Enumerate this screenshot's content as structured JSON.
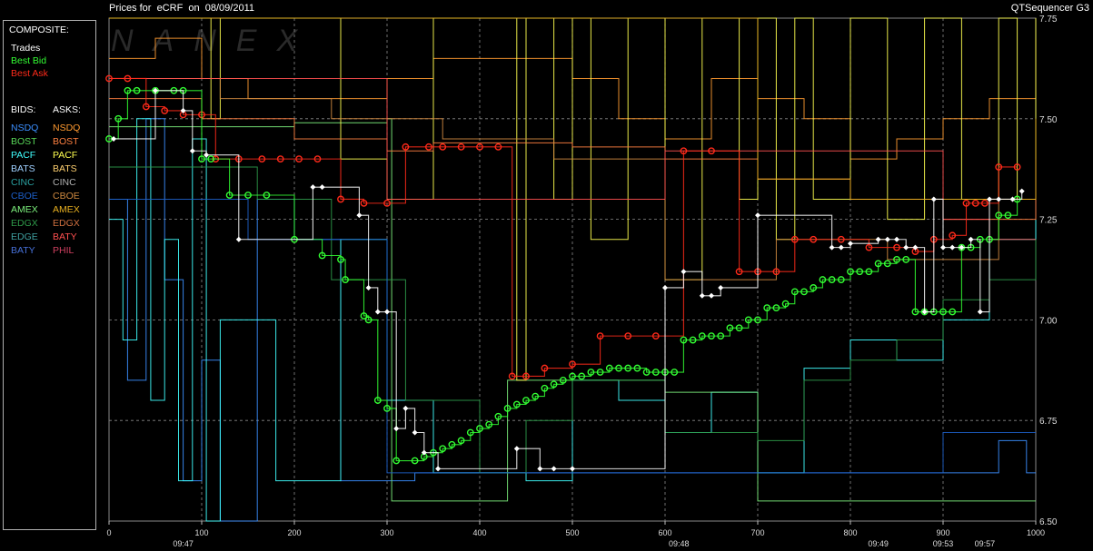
{
  "window": {
    "title": "Prices for  eCRF  on  08/09/2011",
    "app_name": "QTSequencer G3"
  },
  "legend": {
    "composite_header": "COMPOSITE:",
    "composite": [
      {
        "label": "Trades",
        "color": "#ffffff"
      },
      {
        "label": "Best Bid",
        "color": "#33ff33"
      },
      {
        "label": "Best Ask",
        "color": "#ff2a1a"
      }
    ],
    "bids_header": "BIDS:",
    "asks_header": "ASKS:",
    "bids": [
      {
        "label": "NSDQ",
        "color": "#3b8fff"
      },
      {
        "label": "BOST",
        "color": "#58d858"
      },
      {
        "label": "PACF",
        "color": "#40ffff"
      },
      {
        "label": "BATS",
        "color": "#9fd0ff"
      },
      {
        "label": "CINC",
        "color": "#2aa0a0"
      },
      {
        "label": "CBOE",
        "color": "#1d5fc8"
      },
      {
        "label": "AMEX",
        "color": "#7cf07c"
      },
      {
        "label": "EDGX",
        "color": "#2e9a4a"
      },
      {
        "label": "EDGE",
        "color": "#3fa0a0"
      },
      {
        "label": "BATY",
        "color": "#4670d8"
      }
    ],
    "asks": [
      {
        "label": "NSDQ",
        "color": "#ff9a30"
      },
      {
        "label": "BOST",
        "color": "#ff8040"
      },
      {
        "label": "PACF",
        "color": "#ffff50"
      },
      {
        "label": "BATS",
        "color": "#ffd070"
      },
      {
        "label": "CINC",
        "color": "#b0b0b0"
      },
      {
        "label": "CBOE",
        "color": "#d08a40"
      },
      {
        "label": "AMEX",
        "color": "#e8b020"
      },
      {
        "label": "EDGX",
        "color": "#d07040"
      },
      {
        "label": "BATY",
        "color": "#ff5050"
      },
      {
        "label": "PHIL",
        "color": "#d04060"
      }
    ]
  },
  "watermark": "NANEX",
  "chart_data": {
    "type": "line",
    "xlim": [
      0,
      1000
    ],
    "ylim": [
      6.5,
      7.75
    ],
    "x_ticks": [
      "0",
      "100",
      "200",
      "300",
      "400",
      "500",
      "600",
      "700",
      "800",
      "900",
      "1000"
    ],
    "y_ticks": [
      "6.50",
      "6.75",
      "7.00",
      "7.25",
      "7.50",
      "7.75"
    ],
    "time_labels": [
      {
        "x": 80,
        "label": "09:47"
      },
      {
        "x": 615,
        "label": "09:48"
      },
      {
        "x": 830,
        "label": "09:49"
      },
      {
        "x": 900,
        "label": "09:53"
      },
      {
        "x": 945,
        "label": "09:57"
      }
    ],
    "grid": true,
    "series": [
      {
        "name": "Best Ask",
        "color": "#ff2a1a",
        "marker": "circle",
        "x": [
          0,
          20,
          40,
          60,
          80,
          100,
          115,
          140,
          165,
          185,
          205,
          225,
          250,
          275,
          300,
          320,
          345,
          360,
          380,
          400,
          420,
          435,
          450,
          470,
          500,
          530,
          560,
          590,
          620,
          650,
          680,
          700,
          720,
          740,
          760,
          790,
          820,
          850,
          870,
          890,
          910,
          925,
          935,
          945,
          960,
          980
        ],
        "y": [
          7.6,
          7.6,
          7.53,
          7.52,
          7.51,
          7.51,
          7.4,
          7.4,
          7.4,
          7.4,
          7.4,
          7.4,
          7.3,
          7.29,
          7.29,
          7.43,
          7.43,
          7.43,
          7.43,
          7.43,
          7.43,
          6.86,
          6.86,
          6.88,
          6.89,
          6.96,
          6.96,
          6.96,
          7.42,
          7.42,
          7.12,
          7.12,
          7.12,
          7.2,
          7.2,
          7.2,
          7.18,
          7.18,
          7.17,
          7.2,
          7.21,
          7.29,
          7.29,
          7.29,
          7.38,
          7.38
        ]
      },
      {
        "name": "Best Bid",
        "color": "#33ff33",
        "marker": "circle",
        "x": [
          0,
          10,
          20,
          30,
          50,
          70,
          80,
          100,
          110,
          130,
          150,
          170,
          200,
          230,
          250,
          255,
          275,
          280,
          290,
          300,
          310,
          330,
          340,
          350,
          360,
          370,
          380,
          390,
          400,
          410,
          420,
          430,
          440,
          450,
          460,
          470,
          480,
          490,
          500,
          510,
          520,
          530,
          540,
          550,
          560,
          570,
          580,
          590,
          600,
          610,
          620,
          630,
          640,
          650,
          660,
          670,
          680,
          690,
          700,
          710,
          720,
          730,
          740,
          750,
          760,
          770,
          780,
          790,
          800,
          810,
          820,
          830,
          840,
          850,
          860,
          870,
          880,
          890,
          900,
          910,
          920,
          930,
          940,
          950,
          960,
          970,
          980
        ],
        "y": [
          7.45,
          7.5,
          7.57,
          7.57,
          7.57,
          7.57,
          7.57,
          7.4,
          7.4,
          7.31,
          7.31,
          7.31,
          7.2,
          7.16,
          7.15,
          7.1,
          7.01,
          7.0,
          6.8,
          6.78,
          6.65,
          6.65,
          6.66,
          6.67,
          6.68,
          6.69,
          6.7,
          6.72,
          6.73,
          6.74,
          6.76,
          6.78,
          6.79,
          6.8,
          6.81,
          6.83,
          6.84,
          6.85,
          6.86,
          6.86,
          6.87,
          6.87,
          6.88,
          6.88,
          6.88,
          6.88,
          6.87,
          6.87,
          6.87,
          6.87,
          6.95,
          6.95,
          6.96,
          6.96,
          6.96,
          6.98,
          6.98,
          7.0,
          7.0,
          7.03,
          7.03,
          7.04,
          7.07,
          7.07,
          7.08,
          7.1,
          7.1,
          7.1,
          7.12,
          7.12,
          7.12,
          7.14,
          7.14,
          7.15,
          7.15,
          7.02,
          7.02,
          7.02,
          7.02,
          7.02,
          7.18,
          7.18,
          7.2,
          7.2,
          7.26,
          7.26,
          7.3
        ]
      },
      {
        "name": "Trades",
        "color": "#ffffff",
        "marker": "diamond",
        "x": [
          5,
          50,
          80,
          90,
          105,
          140,
          220,
          230,
          270,
          280,
          290,
          300,
          310,
          320,
          330,
          340,
          355,
          440,
          465,
          480,
          500,
          600,
          620,
          640,
          650,
          660,
          700,
          780,
          790,
          800,
          830,
          840,
          850,
          860,
          870,
          880,
          890,
          900,
          910,
          920,
          930,
          940,
          950,
          960,
          975,
          985
        ],
        "y": [
          7.45,
          7.57,
          7.52,
          7.42,
          7.41,
          7.2,
          7.33,
          7.33,
          7.26,
          7.08,
          7.02,
          7.02,
          6.73,
          6.78,
          6.72,
          6.67,
          6.63,
          6.68,
          6.63,
          6.63,
          6.63,
          7.08,
          7.12,
          7.06,
          7.06,
          7.08,
          7.26,
          7.18,
          7.18,
          7.19,
          7.2,
          7.2,
          7.2,
          7.18,
          7.18,
          7.02,
          7.3,
          7.18,
          7.18,
          7.18,
          7.2,
          7.02,
          7.3,
          7.3,
          7.3,
          7.32
        ]
      },
      {
        "name": "NSDQ",
        "color": "#3b8fff",
        "marker": "none",
        "x": [
          0,
          20,
          40,
          60,
          80,
          100,
          120,
          160,
          200,
          250,
          300,
          330,
          400,
          450,
          500,
          550,
          600,
          650,
          700,
          750,
          800,
          850,
          900,
          930,
          960,
          990,
          1000
        ],
        "y": [
          7.3,
          6.85,
          7.5,
          7.1,
          6.6,
          6.9,
          6.5,
          7.3,
          7.2,
          6.6,
          6.6,
          6.62,
          6.62,
          6.62,
          6.62,
          6.62,
          6.62,
          6.62,
          6.62,
          6.62,
          6.62,
          6.62,
          6.62,
          6.62,
          6.7,
          6.62,
          6.62
        ]
      },
      {
        "name": "PACF",
        "color": "#40ffff",
        "marker": "none",
        "x": [
          0,
          15,
          30,
          45,
          60,
          75,
          90,
          105,
          120,
          180,
          250,
          300,
          350,
          400,
          450,
          500,
          550,
          600,
          650,
          700,
          750,
          800,
          850,
          900,
          950,
          1000
        ],
        "y": [
          7.25,
          6.95,
          7.5,
          6.8,
          7.2,
          6.6,
          7.45,
          6.5,
          7.0,
          6.6,
          7.2,
          6.8,
          6.62,
          6.62,
          6.6,
          6.85,
          6.8,
          6.72,
          6.82,
          6.62,
          6.88,
          6.95,
          6.9,
          7.0,
          7.2,
          7.25
        ]
      },
      {
        "name": "AMEX",
        "color": "#7cf07c",
        "marker": "none",
        "x": [
          0,
          100,
          200,
          300,
          305,
          400,
          430,
          500,
          600,
          650,
          700,
          750,
          800,
          850,
          900,
          950,
          1000
        ],
        "y": [
          7.48,
          7.48,
          7.49,
          7.5,
          6.55,
          6.55,
          6.85,
          6.85,
          6.82,
          6.82,
          6.55,
          6.55,
          6.55,
          6.55,
          6.55,
          6.55,
          6.55
        ]
      },
      {
        "name": "EDGX",
        "color": "#2e9a4a",
        "marker": "none",
        "x": [
          0,
          80,
          160,
          240,
          320,
          400,
          450,
          500,
          550,
          600,
          650,
          700,
          750,
          800,
          850,
          900,
          950,
          1000
        ],
        "y": [
          7.38,
          7.38,
          7.3,
          7.1,
          6.8,
          6.62,
          6.75,
          6.85,
          6.85,
          6.72,
          6.72,
          6.7,
          6.85,
          6.9,
          6.95,
          7.05,
          7.1,
          7.2
        ]
      },
      {
        "name": "CBOE",
        "color": "#1d5fc8",
        "marker": "none",
        "x": [
          0,
          150,
          300,
          400,
          500,
          600,
          700,
          800,
          900,
          1000
        ],
        "y": [
          7.3,
          7.2,
          6.62,
          6.62,
          6.62,
          6.62,
          6.62,
          6.62,
          6.72,
          6.72
        ]
      },
      {
        "name": "NSDQ Ask",
        "color": "#ff9a30",
        "marker": "none",
        "x": [
          0,
          50,
          100,
          150,
          200,
          250,
          300,
          350,
          400,
          450,
          500,
          550,
          600,
          650,
          700,
          750,
          800,
          850,
          900,
          950,
          1000
        ],
        "y": [
          7.65,
          7.7,
          7.6,
          7.55,
          7.55,
          7.55,
          7.6,
          7.65,
          7.65,
          7.65,
          7.6,
          7.5,
          7.45,
          7.6,
          7.55,
          7.5,
          7.4,
          7.45,
          7.5,
          7.55,
          7.7
        ]
      },
      {
        "name": "PACF Ask",
        "color": "#ffff50",
        "marker": "none",
        "x": [
          0,
          100,
          110,
          120,
          200,
          250,
          300,
          350,
          400,
          430,
          440,
          450,
          480,
          500,
          520,
          560,
          600,
          640,
          680,
          700,
          720,
          740,
          760,
          800,
          840,
          880,
          920,
          960,
          980,
          1000
        ],
        "y": [
          7.75,
          7.75,
          7.5,
          7.75,
          7.75,
          7.4,
          7.3,
          7.75,
          7.75,
          7.75,
          6.85,
          7.75,
          7.3,
          7.75,
          7.2,
          7.75,
          7.1,
          7.75,
          7.3,
          7.75,
          7.2,
          7.75,
          7.3,
          7.75,
          7.25,
          7.75,
          7.3,
          7.75,
          7.3,
          7.75
        ]
      },
      {
        "name": "BOST Ask",
        "color": "#ff8040",
        "marker": "none",
        "x": [
          0,
          100,
          200,
          300,
          350,
          400,
          500,
          600,
          700,
          800,
          900,
          1000
        ],
        "y": [
          7.55,
          7.5,
          7.45,
          7.42,
          7.44,
          7.44,
          7.43,
          7.4,
          7.35,
          7.3,
          7.25,
          7.4
        ]
      },
      {
        "name": "CBOE Ask",
        "color": "#d08a40",
        "marker": "none",
        "x": [
          0,
          120,
          240,
          360,
          480,
          600,
          720,
          840,
          960,
          1000
        ],
        "y": [
          7.6,
          7.55,
          7.5,
          7.45,
          7.4,
          7.1,
          7.2,
          7.15,
          7.3,
          7.3
        ]
      },
      {
        "name": "AMEX Ask",
        "color": "#e8b020",
        "marker": "none",
        "x": [
          0,
          200,
          400,
          600,
          700,
          800,
          900,
          1000
        ],
        "y": [
          7.75,
          7.75,
          7.75,
          7.75,
          7.35,
          7.3,
          7.3,
          7.5
        ]
      },
      {
        "name": "BATY Ask",
        "color": "#ff5050",
        "marker": "none",
        "x": [
          0,
          300,
          600,
          900,
          950,
          1000
        ],
        "y": [
          7.6,
          7.3,
          7.42,
          7.25,
          7.2,
          7.2
        ]
      }
    ]
  }
}
